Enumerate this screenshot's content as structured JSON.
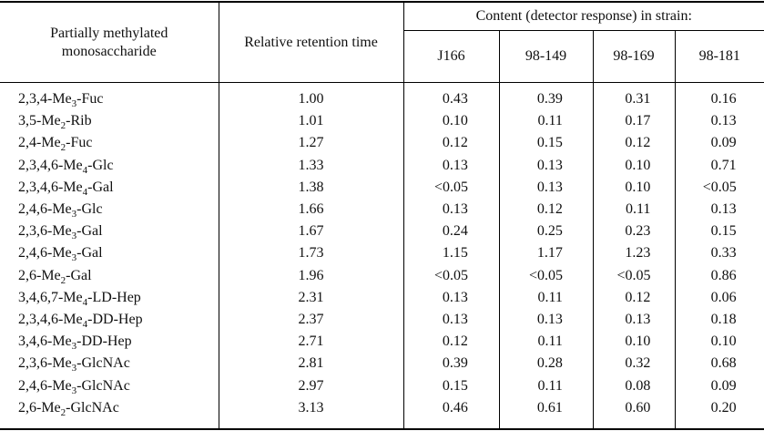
{
  "page": {
    "background_color": "#ffffff",
    "rule_color": "#000000",
    "text_color": "#101010"
  },
  "table": {
    "header": {
      "monosaccharide_label": "Partially methylated monosaccharide",
      "retention_label": "Relative retention time",
      "content_group_label": "Content (detector response) in strain:",
      "strains": [
        "J166",
        "98-149",
        "98-169",
        "98-181"
      ]
    },
    "rows": [
      {
        "pre": "2,3,4-Me",
        "sub": "3",
        "post": "-Fuc",
        "rrt": "1.00",
        "values": [
          "0.43",
          "0.39",
          "0.31",
          "0.16"
        ]
      },
      {
        "pre": "3,5-Me",
        "sub": "2",
        "post": "-Rib",
        "rrt": "1.01",
        "values": [
          "0.10",
          "0.11",
          "0.17",
          "0.13"
        ]
      },
      {
        "pre": "2,4-Me",
        "sub": "2",
        "post": "-Fuc",
        "rrt": "1.27",
        "values": [
          "0.12",
          "0.15",
          "0.12",
          "0.09"
        ]
      },
      {
        "pre": "2,3,4,6-Me",
        "sub": "4",
        "post": "-Glc",
        "rrt": "1.33",
        "values": [
          "0.13",
          "0.13",
          "0.10",
          "0.71"
        ]
      },
      {
        "pre": "2,3,4,6-Me",
        "sub": "4",
        "post": "-Gal",
        "rrt": "1.38",
        "values": [
          "<0.05",
          "0.13",
          "0.10",
          "<0.05"
        ]
      },
      {
        "pre": "2,4,6-Me",
        "sub": "3",
        "post": "-Glc",
        "rrt": "1.66",
        "values": [
          "0.13",
          "0.12",
          "0.11",
          "0.13"
        ]
      },
      {
        "pre": "2,3,6-Me",
        "sub": "3",
        "post": "-Gal",
        "rrt": "1.67",
        "values": [
          "0.24",
          "0.25",
          "0.23",
          "0.15"
        ]
      },
      {
        "pre": "2,4,6-Me",
        "sub": "3",
        "post": "-Gal",
        "rrt": "1.73",
        "values": [
          "1.15",
          "1.17",
          "1.23",
          "0.33"
        ]
      },
      {
        "pre": "2,6-Me",
        "sub": "2",
        "post": "-Gal",
        "rrt": "1.96",
        "values": [
          "<0.05",
          "<0.05",
          "<0.05",
          "0.86"
        ]
      },
      {
        "pre": "3,4,6,7-Me",
        "sub": "4",
        "post": "-LD-Hep",
        "rrt": "2.31",
        "values": [
          "0.13",
          "0.11",
          "0.12",
          "0.06"
        ]
      },
      {
        "pre": "2,3,4,6-Me",
        "sub": "4",
        "post": "-DD-Hep",
        "rrt": "2.37",
        "values": [
          "0.13",
          "0.13",
          "0.13",
          "0.18"
        ]
      },
      {
        "pre": "3,4,6-Me",
        "sub": "3",
        "post": "-DD-Hep",
        "rrt": "2.71",
        "values": [
          "0.12",
          "0.11",
          "0.10",
          "0.10"
        ]
      },
      {
        "pre": "2,3,6-Me",
        "sub": "3",
        "post": "-GlcNAc",
        "rrt": "2.81",
        "values": [
          "0.39",
          "0.28",
          "0.32",
          "0.68"
        ]
      },
      {
        "pre": "2,4,6-Me",
        "sub": "3",
        "post": "-GlcNAc",
        "rrt": "2.97",
        "values": [
          "0.15",
          "0.11",
          "0.08",
          "0.09"
        ]
      },
      {
        "pre": "2,6-Me",
        "sub": "2",
        "post": "-GlcNAc",
        "rrt": "3.13",
        "values": [
          "0.46",
          "0.61",
          "0.60",
          "0.20"
        ]
      }
    ]
  }
}
